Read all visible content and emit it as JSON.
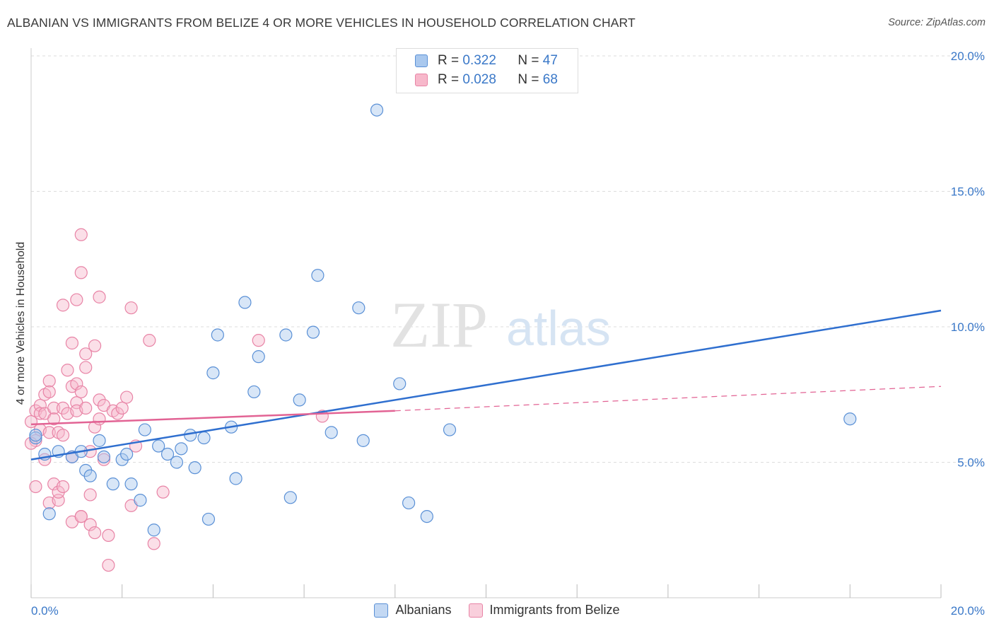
{
  "title": "ALBANIAN VS IMMIGRANTS FROM BELIZE 4 OR MORE VEHICLES IN HOUSEHOLD CORRELATION CHART",
  "source": "Source: ZipAtlas.com",
  "watermark": {
    "zip": "ZIP",
    "atlas": "atlas"
  },
  "legend": {
    "rows": [
      {
        "r_label": "R =",
        "r_value": "0.322",
        "n_label": "N =",
        "n_value": "47"
      },
      {
        "r_label": "R =",
        "r_value": "0.028",
        "n_label": "N =",
        "n_value": "68"
      }
    ]
  },
  "bottom_legend": {
    "series1": "Albanians",
    "series2": "Immigrants from Belize"
  },
  "colors": {
    "albanian_fill": "#a9c8ee",
    "albanian_stroke": "#5a90d6",
    "albanian_line": "#2f6fcf",
    "belize_fill": "#f7b8cb",
    "belize_stroke": "#e884a6",
    "belize_line": "#e26394",
    "tick_text": "#3a78c8",
    "grid": "#dddddd"
  },
  "chart_data": {
    "type": "scatter",
    "title": "ALBANIAN VS IMMIGRANTS FROM BELIZE 4 OR MORE VEHICLES IN HOUSEHOLD CORRELATION CHART",
    "xlabel": "",
    "ylabel": "4 or more Vehicles in Household",
    "xlim": [
      0,
      20
    ],
    "ylim": [
      0,
      20
    ],
    "x_tick_labels": [
      "0.0%",
      "20.0%"
    ],
    "y_tick_labels": [
      "5.0%",
      "10.0%",
      "15.0%",
      "20.0%"
    ],
    "y_ticks": [
      5,
      10,
      15,
      20
    ],
    "grid": true,
    "legend_placement": "top-center",
    "series": [
      {
        "name": "Albanians",
        "R": 0.322,
        "N": 47,
        "trend": {
          "x": [
            0,
            20
          ],
          "y": [
            5.1,
            10.6
          ]
        },
        "points": [
          [
            0.1,
            5.9
          ],
          [
            0.3,
            5.3
          ],
          [
            0.4,
            3.1
          ],
          [
            0.6,
            5.4
          ],
          [
            0.9,
            5.2
          ],
          [
            1.1,
            5.4
          ],
          [
            1.2,
            4.7
          ],
          [
            1.3,
            4.5
          ],
          [
            1.5,
            5.8
          ],
          [
            1.6,
            5.2
          ],
          [
            1.8,
            4.2
          ],
          [
            2.0,
            5.1
          ],
          [
            2.1,
            5.3
          ],
          [
            2.2,
            4.2
          ],
          [
            2.4,
            3.6
          ],
          [
            2.5,
            6.2
          ],
          [
            2.7,
            2.5
          ],
          [
            2.8,
            5.6
          ],
          [
            3.0,
            5.3
          ],
          [
            3.2,
            5.0
          ],
          [
            3.3,
            5.5
          ],
          [
            3.5,
            6.0
          ],
          [
            3.6,
            4.8
          ],
          [
            3.8,
            5.9
          ],
          [
            3.9,
            2.9
          ],
          [
            4.0,
            8.3
          ],
          [
            4.1,
            9.7
          ],
          [
            4.4,
            6.3
          ],
          [
            4.5,
            4.4
          ],
          [
            4.7,
            10.9
          ],
          [
            4.9,
            7.6
          ],
          [
            5.0,
            8.9
          ],
          [
            5.6,
            9.7
          ],
          [
            5.7,
            3.7
          ],
          [
            5.9,
            7.3
          ],
          [
            6.2,
            9.8
          ],
          [
            6.3,
            11.9
          ],
          [
            6.6,
            6.1
          ],
          [
            7.2,
            10.7
          ],
          [
            7.3,
            5.8
          ],
          [
            7.6,
            18.0
          ],
          [
            8.1,
            7.9
          ],
          [
            8.3,
            3.5
          ],
          [
            8.7,
            3.0
          ],
          [
            9.2,
            6.2
          ],
          [
            18.0,
            6.6
          ],
          [
            0.1,
            6.0
          ]
        ]
      },
      {
        "name": "Immigrants from Belize",
        "R": 0.028,
        "N": 68,
        "trend": {
          "x": [
            0,
            8
          ],
          "y": [
            6.4,
            6.9
          ]
        },
        "trend_dashed": {
          "x": [
            8,
            20
          ],
          "y": [
            6.9,
            7.8
          ]
        },
        "points": [
          [
            0.0,
            6.5
          ],
          [
            0.1,
            6.9
          ],
          [
            0.1,
            4.1
          ],
          [
            0.1,
            5.8
          ],
          [
            0.2,
            6.2
          ],
          [
            0.2,
            7.1
          ],
          [
            0.2,
            6.8
          ],
          [
            0.3,
            5.1
          ],
          [
            0.3,
            7.5
          ],
          [
            0.3,
            6.8
          ],
          [
            0.4,
            8.0
          ],
          [
            0.4,
            7.6
          ],
          [
            0.4,
            3.5
          ],
          [
            0.4,
            6.1
          ],
          [
            0.5,
            4.2
          ],
          [
            0.5,
            7.0
          ],
          [
            0.5,
            6.6
          ],
          [
            0.6,
            6.1
          ],
          [
            0.6,
            3.6
          ],
          [
            0.6,
            3.9
          ],
          [
            0.7,
            10.8
          ],
          [
            0.7,
            7.0
          ],
          [
            0.7,
            6.0
          ],
          [
            0.7,
            4.1
          ],
          [
            0.8,
            8.4
          ],
          [
            0.8,
            6.8
          ],
          [
            0.9,
            5.2
          ],
          [
            0.9,
            7.8
          ],
          [
            0.9,
            2.8
          ],
          [
            0.9,
            9.4
          ],
          [
            1.0,
            7.2
          ],
          [
            1.0,
            6.9
          ],
          [
            1.0,
            11.0
          ],
          [
            1.0,
            7.9
          ],
          [
            1.1,
            7.6
          ],
          [
            1.1,
            3.0
          ],
          [
            1.1,
            12.0
          ],
          [
            1.1,
            3.0
          ],
          [
            1.2,
            8.5
          ],
          [
            1.2,
            9.0
          ],
          [
            1.2,
            7.0
          ],
          [
            1.1,
            13.4
          ],
          [
            1.3,
            3.8
          ],
          [
            1.3,
            5.4
          ],
          [
            1.3,
            2.7
          ],
          [
            1.4,
            9.3
          ],
          [
            1.4,
            2.4
          ],
          [
            1.4,
            6.3
          ],
          [
            1.5,
            6.6
          ],
          [
            1.5,
            11.1
          ],
          [
            1.5,
            7.3
          ],
          [
            1.6,
            5.1
          ],
          [
            1.6,
            7.1
          ],
          [
            1.7,
            2.3
          ],
          [
            1.7,
            1.2
          ],
          [
            1.8,
            6.9
          ],
          [
            1.9,
            6.8
          ],
          [
            2.0,
            7.0
          ],
          [
            2.1,
            7.4
          ],
          [
            2.2,
            10.7
          ],
          [
            2.2,
            3.4
          ],
          [
            2.3,
            5.6
          ],
          [
            2.6,
            9.5
          ],
          [
            2.7,
            2.0
          ],
          [
            2.9,
            3.9
          ],
          [
            5.0,
            9.5
          ],
          [
            6.4,
            6.7
          ],
          [
            0.0,
            5.7
          ]
        ]
      }
    ]
  }
}
